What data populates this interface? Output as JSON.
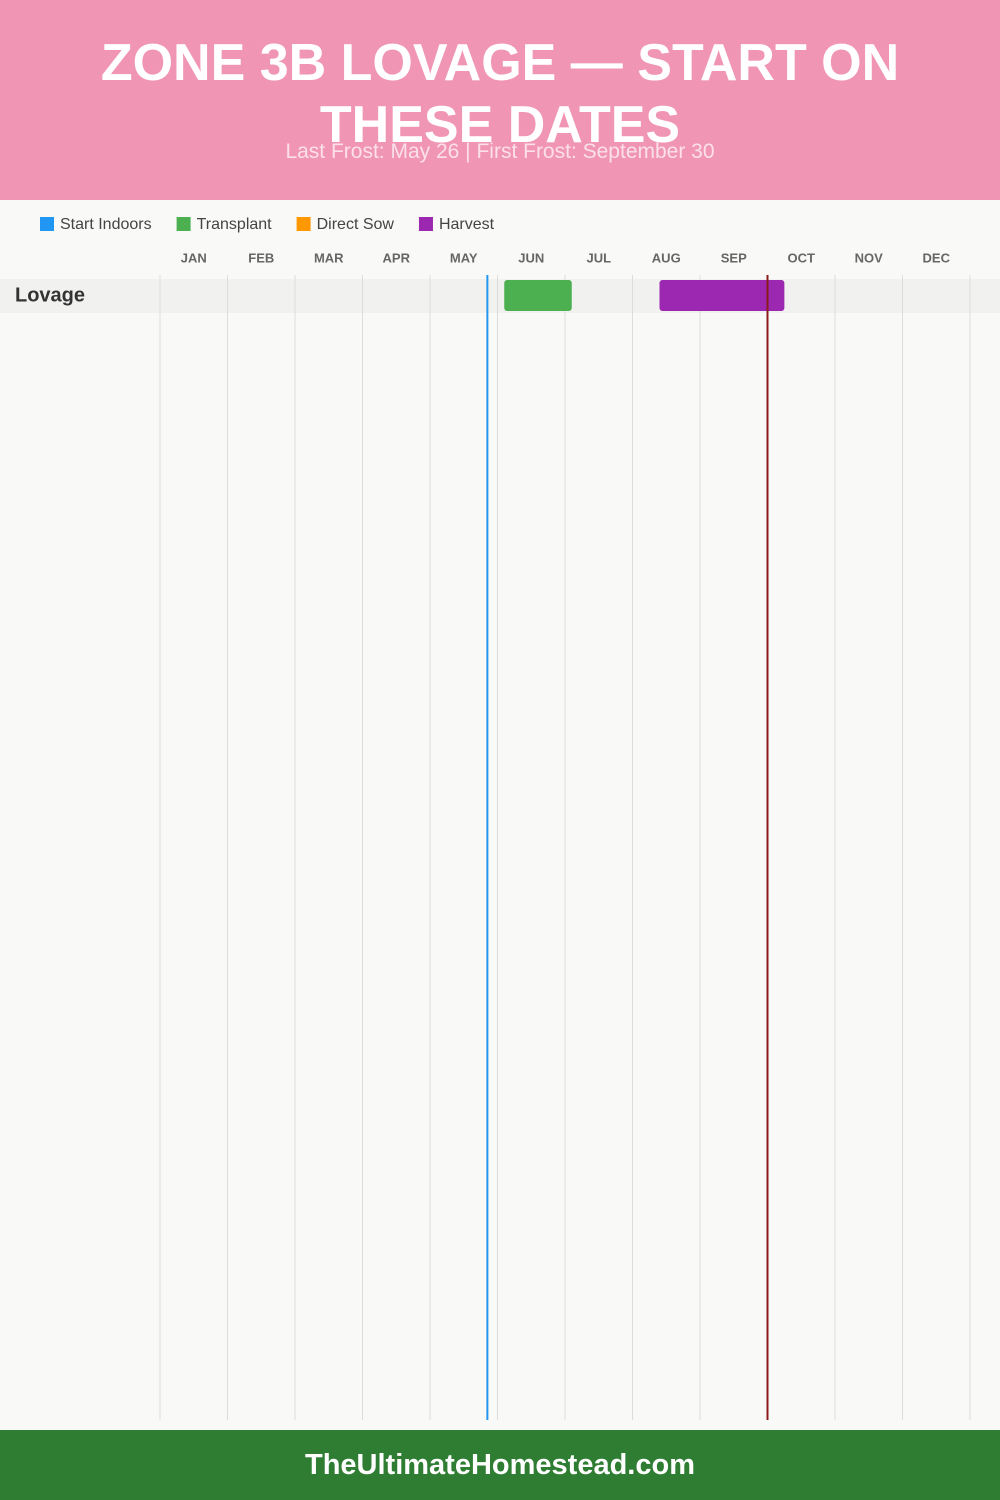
{
  "chart_data": {
    "type": "gantt",
    "title": "ZONE 3B LOVAGE — START ON THESE DATES",
    "subtitle": "Last Frost: May 26 | First Frost: September 30",
    "categories": [
      "JAN",
      "FEB",
      "MAR",
      "APR",
      "MAY",
      "JUN",
      "JUL",
      "AUG",
      "SEP",
      "OCT",
      "NOV",
      "DEC"
    ],
    "xlim": [
      0,
      12
    ],
    "series": [
      {
        "name": "Start Indoors",
        "color": "#2196f3"
      },
      {
        "name": "Transplant",
        "color": "#4caf50"
      },
      {
        "name": "Direct Sow",
        "color": "#ff9800"
      },
      {
        "name": "Harvest",
        "color": "#9c27b0"
      }
    ],
    "rows": [
      {
        "name": "Lovage",
        "tasks": [
          {
            "series": 1,
            "start": 5.1,
            "end": 6.1
          },
          {
            "series": 3,
            "start": 7.4,
            "end": 9.25
          }
        ]
      }
    ],
    "frost_lines": [
      {
        "value": 4.85,
        "color": "#2196f3"
      },
      {
        "value": 9.0,
        "color": "#8b1a1a"
      }
    ]
  },
  "footer": "TheUltimateHomestead.com"
}
